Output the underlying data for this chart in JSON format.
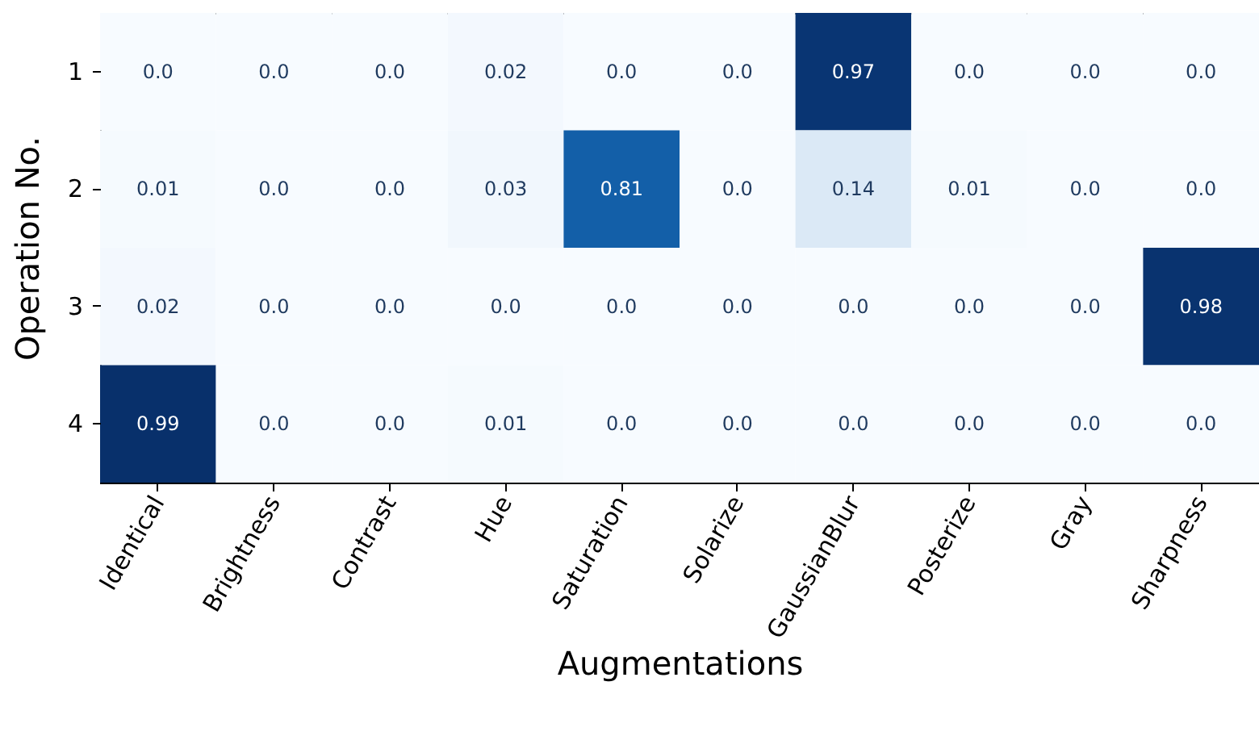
{
  "chart_data": {
    "type": "heatmap",
    "xlabel": "Augmentations",
    "ylabel": "Operation No.",
    "categories": [
      "Identical",
      "Brightness",
      "Contrast",
      "Hue",
      "Saturation",
      "Solarize",
      "GaussianBlur",
      "Posterize",
      "Gray",
      "Sharpness"
    ],
    "y_categories": [
      "1",
      "2",
      "3",
      "4"
    ],
    "cells": [
      [
        0.0,
        0.0,
        0.0,
        0.02,
        0.0,
        0.0,
        0.97,
        0.0,
        0.0,
        0.0
      ],
      [
        0.01,
        0.0,
        0.0,
        0.03,
        0.81,
        0.0,
        0.14,
        0.01,
        0.0,
        0.0
      ],
      [
        0.02,
        0.0,
        0.0,
        0.0,
        0.0,
        0.0,
        0.0,
        0.0,
        0.0,
        0.98
      ],
      [
        0.99,
        0.0,
        0.0,
        0.01,
        0.0,
        0.0,
        0.0,
        0.0,
        0.0,
        0.0
      ]
    ],
    "cell_labels": [
      [
        "0.0",
        "0.0",
        "0.0",
        "0.02",
        "0.0",
        "0.0",
        "0.97",
        "0.0",
        "0.0",
        "0.0"
      ],
      [
        "0.01",
        "0.0",
        "0.0",
        "0.03",
        "0.81",
        "0.0",
        "0.14",
        "0.01",
        "0.0",
        "0.0"
      ],
      [
        "0.02",
        "0.0",
        "0.0",
        "0.0",
        "0.0",
        "0.0",
        "0.0",
        "0.0",
        "0.0",
        "0.98"
      ],
      [
        "0.99",
        "0.0",
        "0.0",
        "0.01",
        "0.0",
        "0.0",
        "0.0",
        "0.0",
        "0.0",
        "0.0"
      ]
    ]
  }
}
